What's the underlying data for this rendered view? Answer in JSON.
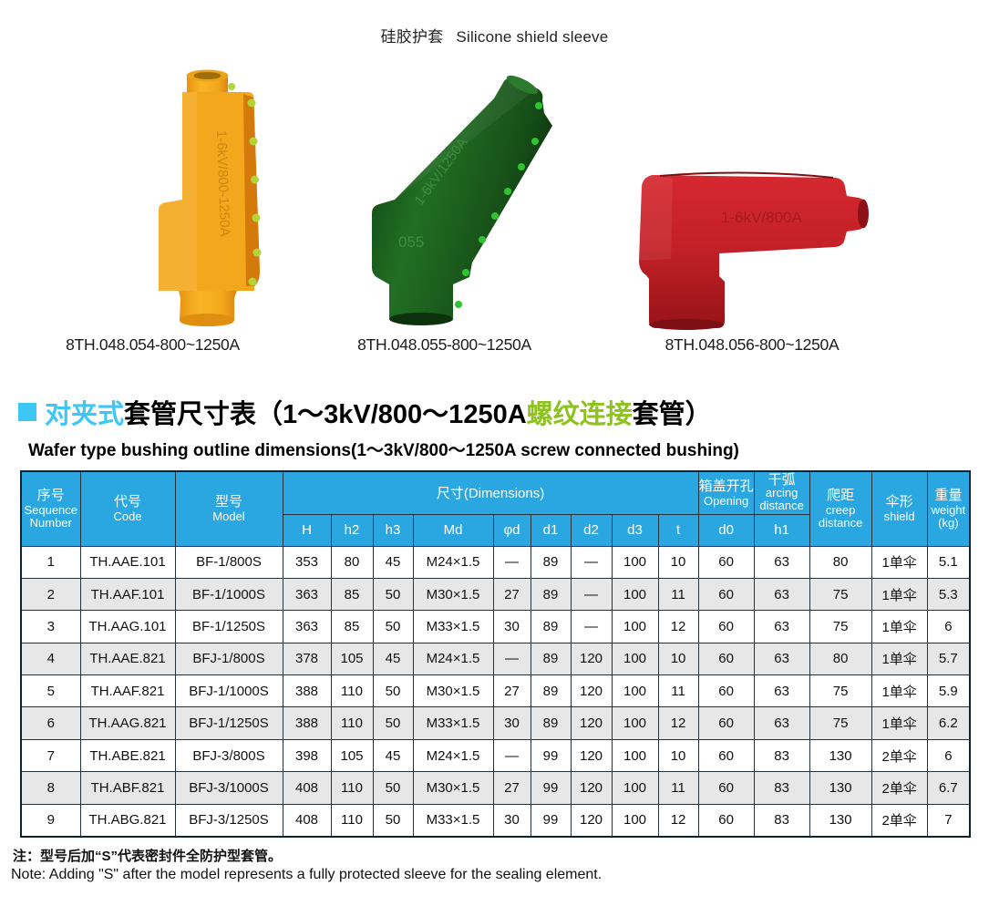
{
  "page_title": {
    "cn": "硅胶护套",
    "en": "Silicone shield sleeve"
  },
  "products": [
    {
      "caption": "8TH.048.054-800~1250A",
      "name": "yellow-sleeve",
      "body_color": "#F3A71C",
      "dot_color": "#B4D437"
    },
    {
      "caption": "8TH.048.055-800~1250A",
      "name": "green-sleeve",
      "body_color": "#1B5E1D",
      "dot_color": "#2FC42F",
      "embossed_label": "1-6kV/1250A",
      "mold_number": "055"
    },
    {
      "caption": "8TH.048.056-800~1250A",
      "name": "red-sleeve",
      "body_color": "#C42128",
      "dot_color": "#A01318"
    }
  ],
  "section": {
    "bullet_color": "#3DC7F2",
    "title_part1": "对夹式",
    "title_part1_color": "#3DC7F2",
    "title_part2": "套管尺寸表（1～3kV/800～1250A ",
    "title_part3": "螺纹连接",
    "title_part3_color": "#8DC21F",
    "title_part4": "套管）",
    "subtitle_en": "Wafer type bushing outline dimensions(1～3kV/800～1250A screw connected bushing)"
  },
  "table": {
    "header_bg": "#2AA7E0",
    "alt_row_bg": "#E7E7E7",
    "header": {
      "seq_cn": "序号",
      "seq_en1": "Sequence",
      "seq_en2": "Number",
      "code_cn": "代号",
      "code_en": "Code",
      "model_cn": "型号",
      "model_en": "Model",
      "dims": "尺寸(Dimensions)",
      "dim_cols": [
        "H",
        "h2",
        "h3",
        "Md",
        "φd",
        "d1",
        "d2",
        "d3",
        "t"
      ],
      "opening_cn": "箱盖开孔",
      "opening_en": "Opening",
      "opening_sub": "d0",
      "arcing_cn": "干弧",
      "arcing_en1": "arcing",
      "arcing_en2": "distance",
      "arcing_sub": "h1",
      "creep_cn": "爬距",
      "creep_en1": "creep",
      "creep_en2": "distance",
      "shield_cn": "伞形",
      "shield_en": "shield",
      "weight_cn": "重量",
      "weight_en": "weight",
      "weight_unit": "(kg)"
    },
    "rows": [
      [
        "1",
        "TH.AAE.101",
        "BF-1/800S",
        "353",
        "80",
        "45",
        "M24×1.5",
        "—",
        "89",
        "—",
        "100",
        "10",
        "60",
        "63",
        "80",
        "1单伞",
        "5.1"
      ],
      [
        "2",
        "TH.AAF.101",
        "BF-1/1000S",
        "363",
        "85",
        "50",
        "M30×1.5",
        "27",
        "89",
        "—",
        "100",
        "11",
        "60",
        "63",
        "75",
        "1单伞",
        "5.3"
      ],
      [
        "3",
        "TH.AAG.101",
        "BF-1/1250S",
        "363",
        "85",
        "50",
        "M33×1.5",
        "30",
        "89",
        "—",
        "100",
        "12",
        "60",
        "63",
        "75",
        "1单伞",
        "6"
      ],
      [
        "4",
        "TH.AAE.821",
        "BFJ-1/800S",
        "378",
        "105",
        "45",
        "M24×1.5",
        "—",
        "89",
        "120",
        "100",
        "10",
        "60",
        "63",
        "80",
        "1单伞",
        "5.7"
      ],
      [
        "5",
        "TH.AAF.821",
        "BFJ-1/1000S",
        "388",
        "110",
        "50",
        "M30×1.5",
        "27",
        "89",
        "120",
        "100",
        "11",
        "60",
        "63",
        "75",
        "1单伞",
        "5.9"
      ],
      [
        "6",
        "TH.AAG.821",
        "BFJ-1/1250S",
        "388",
        "110",
        "50",
        "M33×1.5",
        "30",
        "89",
        "120",
        "100",
        "12",
        "60",
        "63",
        "75",
        "1单伞",
        "6.2"
      ],
      [
        "7",
        "TH.ABE.821",
        "BFJ-3/800S",
        "398",
        "105",
        "45",
        "M24×1.5",
        "—",
        "99",
        "120",
        "100",
        "10",
        "60",
        "83",
        "130",
        "2单伞",
        "6"
      ],
      [
        "8",
        "TH.ABF.821",
        "BFJ-3/1000S",
        "408",
        "110",
        "50",
        "M30×1.5",
        "27",
        "99",
        "120",
        "100",
        "11",
        "60",
        "83",
        "130",
        "2单伞",
        "6.7"
      ],
      [
        "9",
        "TH.ABG.821",
        "BFJ-3/1250S",
        "408",
        "110",
        "50",
        "M33×1.5",
        "30",
        "99",
        "120",
        "100",
        "12",
        "60",
        "83",
        "130",
        "2单伞",
        "7"
      ]
    ]
  },
  "notes": {
    "cn": "注：型号后加“S”代表密封件全防护型套管。",
    "en": "Note: Adding \"S\" after the model represents a fully protected sleeve for the sealing element."
  }
}
